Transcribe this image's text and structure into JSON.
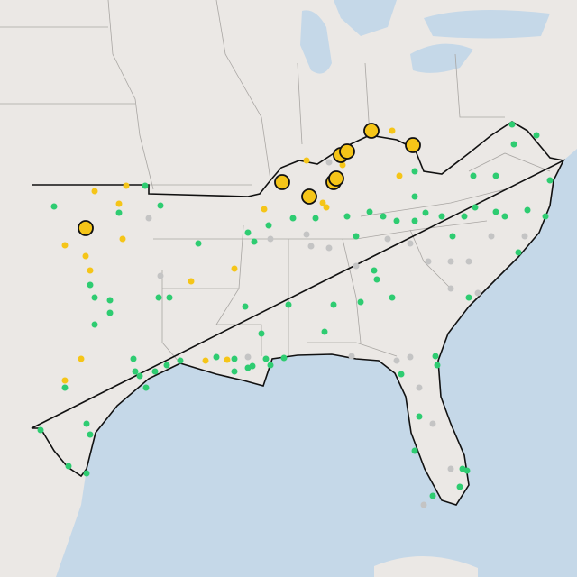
{
  "map": {
    "marker_colors": {
      "green": "#2ecc71",
      "gold": "#f5c518",
      "gray": "#c4c4c4",
      "large": "#f5c518"
    },
    "land": "#ebe8e5",
    "water": "#c5d8e8"
  }
}
